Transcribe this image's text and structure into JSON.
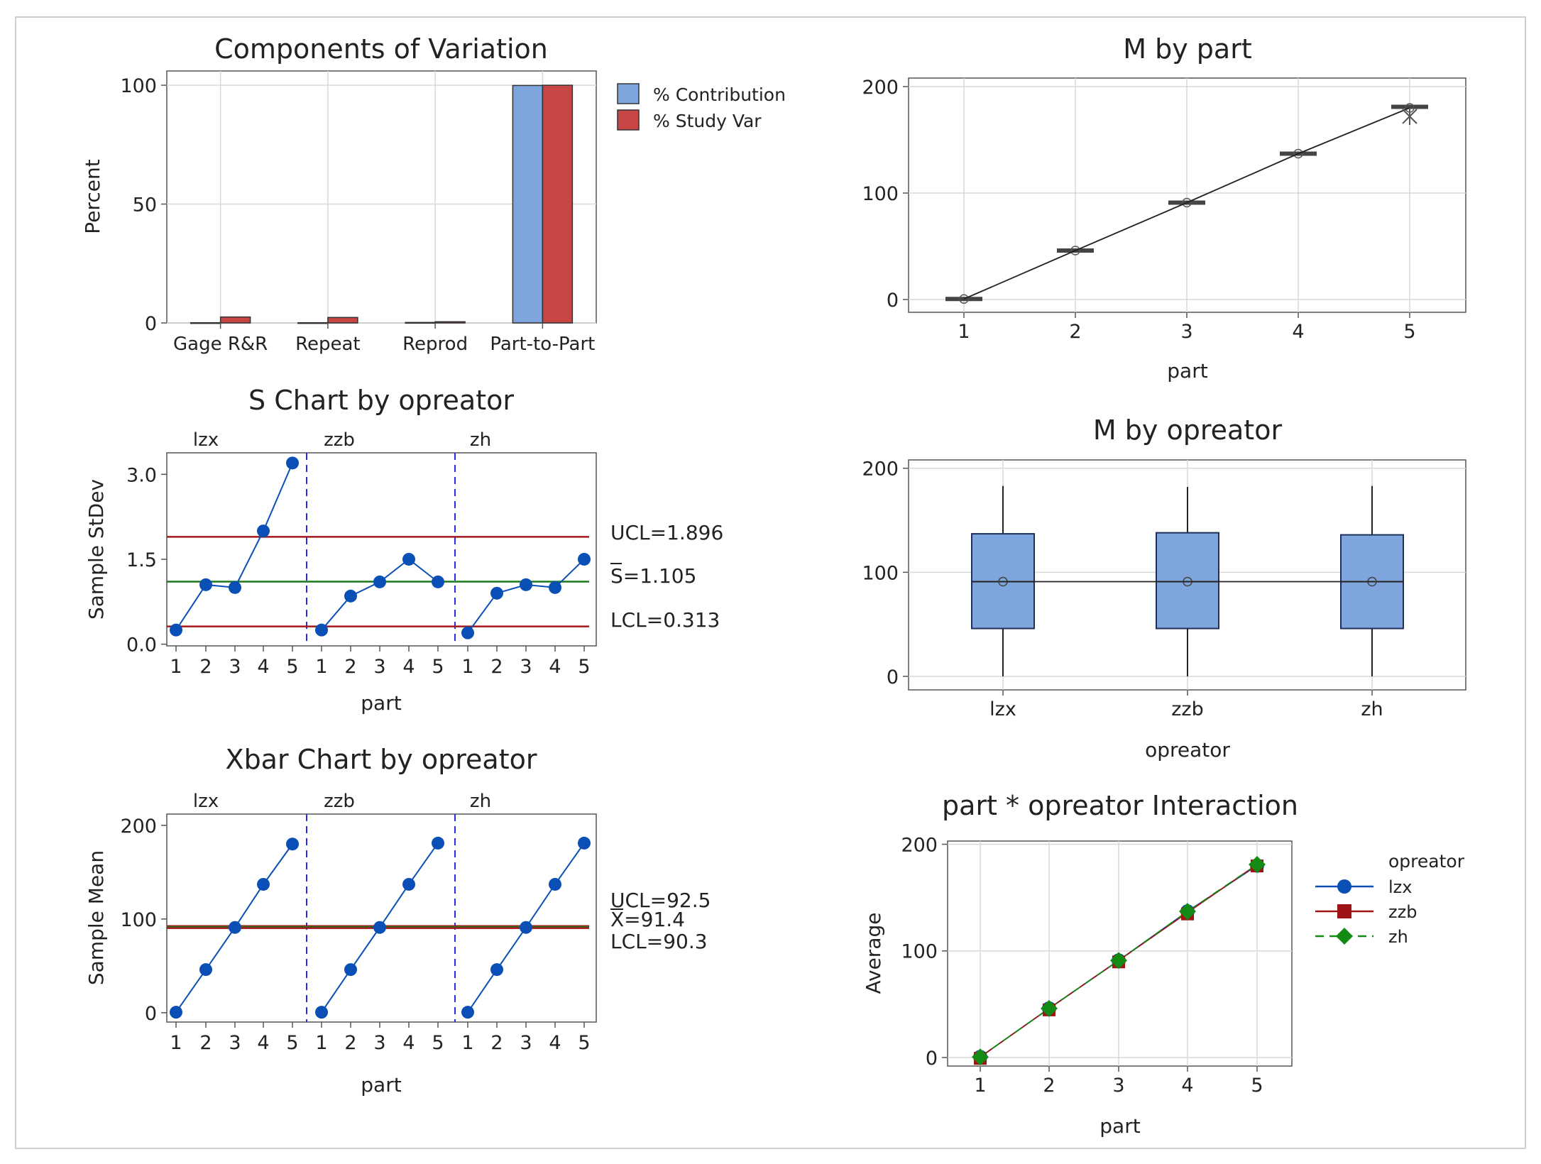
{
  "chart_data": [
    {
      "id": "cov",
      "type": "bar",
      "title": "Components of Variation",
      "ylabel": "Percent",
      "xlabel": "",
      "ylim": [
        0,
        100
      ],
      "yticks": [
        0,
        50,
        100
      ],
      "categories": [
        "Gage R&R",
        "Repeat",
        "Reprod",
        "Part-to-Part"
      ],
      "series": [
        {
          "name": "% Contribution",
          "color": "#7fa6dc",
          "values": [
            0.1,
            0.1,
            0.2,
            99.9
          ]
        },
        {
          "name": "% Study Var",
          "color": "#c74643",
          "values": [
            2.5,
            2.3,
            0.5,
            100
          ]
        }
      ],
      "legend": "right"
    },
    {
      "id": "mbypart",
      "type": "box",
      "title": "M by part",
      "xlabel": "part",
      "ylabel": "",
      "ylim": [
        0,
        200
      ],
      "yticks": [
        0,
        100,
        200
      ],
      "categories": [
        "1",
        "2",
        "3",
        "4",
        "5"
      ],
      "medians": [
        0.5,
        46,
        91,
        137,
        181
      ],
      "means": [
        0.5,
        46,
        91,
        137,
        180
      ],
      "outliers": [
        {
          "category": "5",
          "value": 172
        }
      ]
    },
    {
      "id": "schart",
      "type": "line",
      "title": "S Chart by opreator",
      "xlabel": "part",
      "ylabel": "Sample StDev",
      "ylim": [
        0,
        3.3
      ],
      "yticks": [
        "0.0",
        "1.5",
        "3.0"
      ],
      "panels": [
        "lzx",
        "zzb",
        "zh"
      ],
      "x": [
        "1",
        "2",
        "3",
        "4",
        "5"
      ],
      "series": [
        {
          "name": "lzx",
          "values": [
            0.25,
            1.05,
            1.0,
            2.0,
            3.2
          ]
        },
        {
          "name": "zzb",
          "values": [
            0.25,
            0.85,
            1.1,
            1.5,
            1.1
          ]
        },
        {
          "name": "zh",
          "values": [
            0.2,
            0.9,
            1.05,
            1.0,
            1.5
          ]
        }
      ],
      "ucl": {
        "value": 1.896,
        "label": "UCL=1.896"
      },
      "center": {
        "value": 1.105,
        "label": "S=1.105"
      },
      "lcl": {
        "value": 0.313,
        "label": "LCL=0.313"
      }
    },
    {
      "id": "xbar",
      "type": "line",
      "title": "Xbar Chart by opreator",
      "xlabel": "part",
      "ylabel": "Sample Mean",
      "ylim": [
        -8,
        210
      ],
      "yticks": [
        0,
        100,
        200
      ],
      "panels": [
        "lzx",
        "zzb",
        "zh"
      ],
      "x": [
        "1",
        "2",
        "3",
        "4",
        "5"
      ],
      "series": [
        {
          "name": "lzx",
          "values": [
            0.5,
            46,
            91,
            137,
            180
          ]
        },
        {
          "name": "zzb",
          "values": [
            0.5,
            46,
            91,
            137,
            181
          ]
        },
        {
          "name": "zh",
          "values": [
            0.5,
            46,
            91,
            137,
            181
          ]
        }
      ],
      "ucl": {
        "value": 92.5,
        "label": "UCL=92.5"
      },
      "center": {
        "value": 91.4,
        "label": "X=91.4"
      },
      "lcl": {
        "value": 90.3,
        "label": "LCL=90.3"
      }
    },
    {
      "id": "mbyop",
      "type": "box",
      "title": "M by opreator",
      "xlabel": "opreator",
      "ylabel": "",
      "ylim": [
        0,
        200
      ],
      "yticks": [
        0,
        100,
        200
      ],
      "categories": [
        "lzx",
        "zzb",
        "zh"
      ],
      "boxes": [
        {
          "min": 0,
          "q1": 46,
          "median": 91,
          "q3": 137,
          "max": 183,
          "mean": 91
        },
        {
          "min": 0,
          "q1": 46,
          "median": 91,
          "q3": 138,
          "max": 182,
          "mean": 91
        },
        {
          "min": 0,
          "q1": 46,
          "median": 91,
          "q3": 136,
          "max": 183,
          "mean": 91
        }
      ],
      "box_color": "#7fa6dc"
    },
    {
      "id": "interaction",
      "type": "line",
      "title": "part * opreator Interaction",
      "xlabel": "part",
      "ylabel": "Average",
      "ylim": [
        -5,
        200
      ],
      "yticks": [
        0,
        100,
        200
      ],
      "x": [
        "1",
        "2",
        "3",
        "4",
        "5"
      ],
      "legend_title": "opreator",
      "series": [
        {
          "name": "lzx",
          "color": "#0a4fb5",
          "marker": "circle",
          "values": [
            0.5,
            46,
            91,
            137,
            180
          ]
        },
        {
          "name": "zzb",
          "color": "#9e1416",
          "marker": "square",
          "values": [
            0.5,
            46,
            91,
            136,
            181
          ]
        },
        {
          "name": "zh",
          "color": "#138a13",
          "marker": "diamond",
          "values": [
            0.5,
            46,
            91,
            137,
            181
          ]
        }
      ],
      "legend": "right"
    }
  ]
}
